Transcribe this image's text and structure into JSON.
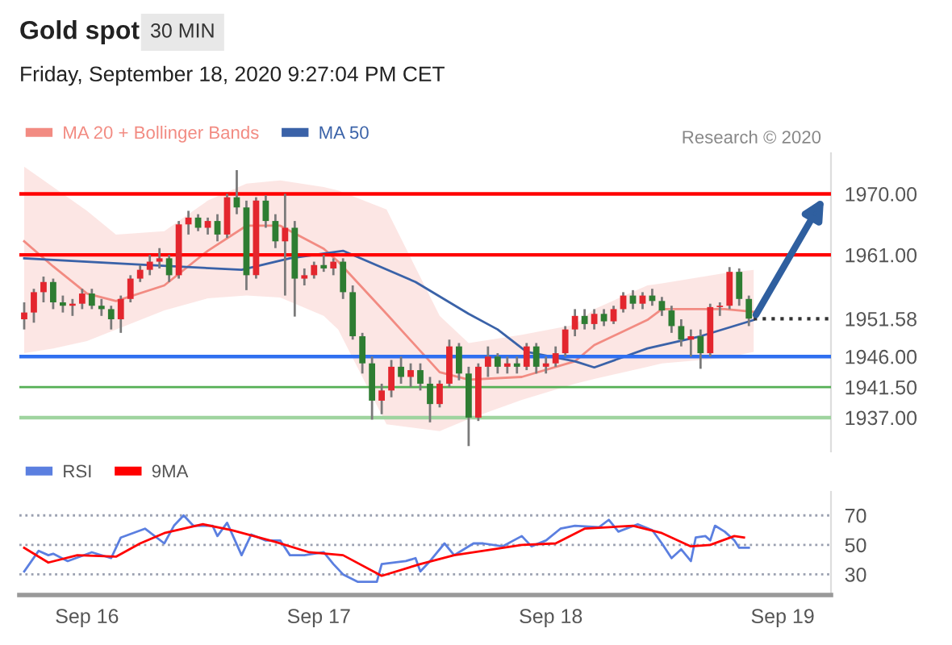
{
  "chart_data": [
    {
      "type": "candlestick",
      "title": "Gold spot",
      "subtitle": "30 MIN",
      "annotations": [
        "Friday, September 18, 2020 9:27:04 PM CET",
        "Research © 2020"
      ],
      "x": [
        "2020-09-15T17:30",
        "2020-09-15T18:30",
        "2020-09-15T19:30",
        "2020-09-15T20:30",
        "2020-09-15T21:30",
        "2020-09-15T22:30",
        "2020-09-15T23:30",
        "2020-09-16T00:30",
        "2020-09-16T01:30",
        "2020-09-16T02:30",
        "2020-09-16T03:30",
        "2020-09-16T04:30",
        "2020-09-16T05:30",
        "2020-09-16T06:30",
        "2020-09-16T07:30",
        "2020-09-16T08:30",
        "2020-09-16T09:30",
        "2020-09-16T10:30",
        "2020-09-16T11:30",
        "2020-09-16T12:30",
        "2020-09-16T13:30",
        "2020-09-16T14:30",
        "2020-09-16T15:30",
        "2020-09-16T16:30",
        "2020-09-16T17:30",
        "2020-09-16T18:30",
        "2020-09-16T19:30",
        "2020-09-16T20:30",
        "2020-09-16T21:30",
        "2020-09-16T22:30",
        "2020-09-16T23:30",
        "2020-09-17T00:30",
        "2020-09-17T01:30",
        "2020-09-17T02:30",
        "2020-09-17T03:30",
        "2020-09-17T04:30",
        "2020-09-17T05:30",
        "2020-09-17T06:30",
        "2020-09-17T07:30",
        "2020-09-17T08:30",
        "2020-09-17T09:30",
        "2020-09-17T10:30",
        "2020-09-17T11:30",
        "2020-09-17T12:30",
        "2020-09-17T13:30",
        "2020-09-17T14:30",
        "2020-09-17T15:30",
        "2020-09-17T16:30",
        "2020-09-17T17:30",
        "2020-09-17T18:30",
        "2020-09-17T19:30",
        "2020-09-17T20:30",
        "2020-09-17T21:30",
        "2020-09-17T22:30",
        "2020-09-17T23:30",
        "2020-09-18T00:30",
        "2020-09-18T01:30",
        "2020-09-18T02:30",
        "2020-09-18T03:30",
        "2020-09-18T04:30",
        "2020-09-18T05:30",
        "2020-09-18T06:30",
        "2020-09-18T07:30",
        "2020-09-18T08:30",
        "2020-09-18T09:30",
        "2020-09-18T10:30",
        "2020-09-18T11:30",
        "2020-09-18T12:30",
        "2020-09-18T13:30",
        "2020-09-18T14:30",
        "2020-09-18T15:30",
        "2020-09-18T16:30",
        "2020-09-18T17:30",
        "2020-09-18T18:30",
        "2020-09-18T19:30",
        "2020-09-18T20:30"
      ],
      "ohlc": [
        [
          1951.5,
          1954,
          1950,
          1952.5
        ],
        [
          1952.5,
          1956,
          1951,
          1955.5
        ],
        [
          1955.5,
          1957.8,
          1954,
          1957
        ],
        [
          1957,
          1957.5,
          1953,
          1954
        ],
        [
          1954,
          1955,
          1952.5,
          1953.5
        ],
        [
          1953.5,
          1954.5,
          1952,
          1953.8
        ],
        [
          1953.8,
          1956,
          1953,
          1955.3
        ],
        [
          1955.3,
          1956,
          1953,
          1953.5
        ],
        [
          1953.5,
          1954.5,
          1952,
          1953
        ],
        [
          1953,
          1953.5,
          1950,
          1951.5
        ],
        [
          1951.5,
          1955,
          1949.5,
          1954.5
        ],
        [
          1954.5,
          1958,
          1954,
          1957.5
        ],
        [
          1957.5,
          1959.5,
          1957,
          1958.8
        ],
        [
          1958.8,
          1961,
          1958,
          1960
        ],
        [
          1960,
          1962,
          1959,
          1960.5
        ],
        [
          1960.5,
          1961,
          1957,
          1958
        ],
        [
          1958,
          1966,
          1957.5,
          1965.5
        ],
        [
          1965.5,
          1967.5,
          1964,
          1966.5
        ],
        [
          1966.5,
          1967,
          1964.5,
          1965
        ],
        [
          1965,
          1966.5,
          1964,
          1966
        ],
        [
          1966,
          1967,
          1963,
          1964
        ],
        [
          1964,
          1970,
          1963.5,
          1969.5
        ],
        [
          1969.5,
          1973.5,
          1967,
          1968
        ],
        [
          1968,
          1969,
          1955.8,
          1958
        ],
        [
          1958,
          1969.5,
          1957.5,
          1969
        ],
        [
          1969,
          1969.8,
          1965,
          1966
        ],
        [
          1966,
          1967,
          1962,
          1963
        ],
        [
          1963,
          1970,
          1955,
          1965
        ],
        [
          1965,
          1966,
          1951.9,
          1957.5
        ],
        [
          1957.5,
          1959,
          1956.5,
          1958
        ],
        [
          1958,
          1960,
          1957.5,
          1959.5
        ],
        [
          1959.5,
          1961,
          1958.5,
          1959
        ],
        [
          1959,
          1960.5,
          1958,
          1960
        ],
        [
          1960,
          1960.5,
          1954.5,
          1955.5
        ],
        [
          1955.5,
          1956.5,
          1948.5,
          1949
        ],
        [
          1949,
          1949.5,
          1943.5,
          1945
        ],
        [
          1945,
          1946,
          1936.7,
          1939.5
        ],
        [
          1939.5,
          1942,
          1937.5,
          1941
        ],
        [
          1941,
          1945.5,
          1940,
          1944.5
        ],
        [
          1944.5,
          1946,
          1942,
          1943
        ],
        [
          1943,
          1945,
          1941.5,
          1944
        ],
        [
          1944,
          1945,
          1941,
          1942
        ],
        [
          1942,
          1943,
          1936.3,
          1939
        ],
        [
          1939,
          1942.5,
          1938.5,
          1942
        ],
        [
          1942,
          1948.5,
          1941.5,
          1947.5
        ],
        [
          1947.5,
          1948,
          1942.5,
          1943.5
        ],
        [
          1943.5,
          1944.5,
          1932.8,
          1937
        ],
        [
          1937,
          1945,
          1936.5,
          1944.5
        ],
        [
          1944.5,
          1947.5,
          1943,
          1946
        ],
        [
          1946,
          1946.5,
          1943.5,
          1944.5
        ],
        [
          1944.5,
          1946,
          1943.5,
          1945
        ],
        [
          1945,
          1946,
          1943.5,
          1944.5
        ],
        [
          1944.5,
          1948,
          1944,
          1947.5
        ],
        [
          1947.5,
          1948,
          1943.5,
          1944.5
        ],
        [
          1944.5,
          1946,
          1943.5,
          1945
        ],
        [
          1945,
          1947.5,
          1944.5,
          1946.5
        ],
        [
          1946.5,
          1950.5,
          1946,
          1950
        ],
        [
          1950,
          1953,
          1949,
          1952
        ],
        [
          1952,
          1953,
          1950,
          1950.8
        ],
        [
          1950.8,
          1953,
          1950,
          1952.3
        ],
        [
          1952.3,
          1953,
          1950.5,
          1951.2
        ],
        [
          1951.2,
          1953.5,
          1950.8,
          1953
        ],
        [
          1953,
          1955.5,
          1952.5,
          1955
        ],
        [
          1955,
          1955.8,
          1953,
          1953.8
        ],
        [
          1953.8,
          1955.5,
          1953,
          1955
        ],
        [
          1955,
          1956,
          1953.5,
          1954.2
        ],
        [
          1954.2,
          1954.8,
          1952,
          1952.8
        ],
        [
          1952.8,
          1953.5,
          1949.5,
          1950.5
        ],
        [
          1950.5,
          1951.5,
          1947.5,
          1948.5
        ],
        [
          1948.5,
          1950,
          1946,
          1949
        ],
        [
          1949,
          1950,
          1944.2,
          1946.5
        ],
        [
          1946.5,
          1953.8,
          1946,
          1953.3
        ],
        [
          1953.3,
          1954,
          1952,
          1953.5
        ],
        [
          1953.5,
          1959.2,
          1953,
          1958.5
        ],
        [
          1958.5,
          1959,
          1953.5,
          1954.5
        ],
        [
          1954.5,
          1955,
          1950.5,
          1951.6
        ]
      ],
      "series": [
        {
          "name": "MA 20 + Bollinger Bands",
          "type": "line",
          "color": "#f28b82",
          "x": [
            "2020-09-15T17:30",
            "2020-09-15T20:30",
            "2020-09-16T00:00",
            "2020-09-16T03:00",
            "2020-09-16T08:00",
            "2020-09-16T12:30",
            "2020-09-16T16:30",
            "2020-09-16T20:00",
            "2020-09-17T00:30",
            "2020-09-17T02:00",
            "2020-09-17T07:00",
            "2020-09-17T12:30",
            "2020-09-17T15:30",
            "2020-09-17T21:00",
            "2020-09-18T02:30",
            "2020-09-18T04:30",
            "2020-09-18T10:00",
            "2020-09-18T11:30",
            "2020-09-18T18:00",
            "2020-09-18T21:00"
          ],
          "values": [
            1963,
            1959.3,
            1955.3,
            1954.2,
            1956.5,
            1961.6,
            1965.3,
            1965.3,
            1961.9,
            1960,
            1952.3,
            1943.7,
            1942.6,
            1943,
            1945.3,
            1947.7,
            1951.4,
            1953,
            1953,
            1952.6
          ],
          "lower": [
            1946.5,
            1947.2,
            1948.3,
            1950,
            1952.8,
            1954.6,
            1955,
            1954.7,
            1952,
            1950,
            1936,
            1935,
            1936.8,
            1939.6,
            1942,
            1942.7,
            1944.5,
            1945,
            1945.8,
            1946.7
          ],
          "upper": [
            1974,
            1971,
            1967.5,
            1964,
            1964.5,
            1969,
            1971.5,
            1972,
            1971,
            1970.5,
            1967.7,
            1952,
            1948,
            1949.2,
            1950.7,
            1953,
            1956.5,
            1956.8,
            1958.3,
            1958.8
          ]
        },
        {
          "name": "MA 50",
          "type": "line",
          "color": "#3a62a8",
          "x": [
            "2020-09-15T17:30",
            "2020-09-16T05:00",
            "2020-09-16T16:00",
            "2020-09-16T21:00",
            "2020-09-17T02:30",
            "2020-09-17T10:00",
            "2020-09-17T15:30",
            "2020-09-17T18:30",
            "2020-09-17T21:30",
            "2020-09-18T02:30",
            "2020-09-18T04:30",
            "2020-09-18T10:00",
            "2020-09-18T15:30",
            "2020-09-18T21:00"
          ],
          "values": [
            1960.5,
            1959.6,
            1958.8,
            1960.5,
            1961.6,
            1957,
            1952.3,
            1950,
            1946.7,
            1945.3,
            1944.4,
            1947.2,
            1949,
            1951.4
          ]
        }
      ],
      "ref_lines": [
        {
          "axis": "y",
          "value": 1970,
          "label": "1970.00",
          "color": "#ff0000"
        },
        {
          "axis": "y",
          "value": 1961,
          "label": "1961.00",
          "color": "#ff0000"
        },
        {
          "axis": "y",
          "value": 1951.58,
          "label": "1951.58",
          "color": "#333333",
          "line_style": "dotted"
        },
        {
          "axis": "y",
          "value": 1946,
          "label": "1946.00",
          "color": "#2f6ff0"
        },
        {
          "axis": "y",
          "value": 1941.5,
          "label": "1941.50",
          "color": "#55b055"
        },
        {
          "axis": "y",
          "value": 1937,
          "label": "1937.00",
          "color": "#9fd49f"
        }
      ],
      "xlim": [
        "2020-09-15T17:00",
        "2020-09-19T05:00"
      ],
      "ylim": [
        1932,
        1976
      ],
      "tick_labels": "y",
      "legend": "top left"
    },
    {
      "type": "line",
      "series": [
        {
          "name": "RSI",
          "color": "#5b7fe0",
          "x": [
            "2020-09-15T17:30",
            "2020-09-15T19:00",
            "2020-09-15T20:00",
            "2020-09-15T20:30",
            "2020-09-15T22:00",
            "2020-09-16T00:30",
            "2020-09-16T02:30",
            "2020-09-16T03:30",
            "2020-09-16T06:00",
            "2020-09-16T08:00",
            "2020-09-16T09:00",
            "2020-09-16T10:00",
            "2020-09-16T11:00",
            "2020-09-16T13:00",
            "2020-09-16T13:30",
            "2020-09-16T14:30",
            "2020-09-16T16:00",
            "2020-09-16T17:00",
            "2020-09-16T18:30",
            "2020-09-16T20:00",
            "2020-09-16T21:00",
            "2020-09-16T22:30",
            "2020-09-17T00:30",
            "2020-09-17T01:30",
            "2020-09-17T02:30",
            "2020-09-17T04:00",
            "2020-09-17T06:00",
            "2020-09-17T06:30",
            "2020-09-17T09:00",
            "2020-09-17T10:00",
            "2020-09-17T10:30",
            "2020-09-17T11:30",
            "2020-09-17T13:00",
            "2020-09-17T14:00",
            "2020-09-17T14:30",
            "2020-09-17T16:00",
            "2020-09-17T17:00",
            "2020-09-17T19:00",
            "2020-09-17T21:00",
            "2020-09-17T22:00",
            "2020-09-17T23:30",
            "2020-09-18T01:00",
            "2020-09-18T02:30",
            "2020-09-18T05:00",
            "2020-09-18T06:00",
            "2020-09-18T07:00",
            "2020-09-18T09:00",
            "2020-09-18T10:30",
            "2020-09-18T11:30",
            "2020-09-18T12:30",
            "2020-09-18T13:30",
            "2020-09-18T14:30",
            "2020-09-18T15:00",
            "2020-09-18T16:00",
            "2020-09-18T16:30",
            "2020-09-18T17:00",
            "2020-09-18T18:00",
            "2020-09-18T19:00",
            "2020-09-18T19:30",
            "2020-09-18T20:30"
          ],
          "values": [
            32,
            46,
            43,
            44,
            39,
            45,
            41,
            55,
            61,
            51,
            63,
            70,
            63,
            63,
            56,
            65,
            43,
            57,
            53,
            53,
            43,
            43,
            45,
            37,
            30,
            25,
            25,
            37,
            39,
            41,
            32,
            39,
            51,
            43,
            45,
            51,
            51,
            49,
            56,
            49,
            53,
            61,
            63,
            62,
            67,
            59,
            64,
            60,
            51,
            41,
            47,
            39,
            55,
            56,
            53,
            63,
            59,
            53,
            48,
            48
          ]
        },
        {
          "name": "9MA",
          "color": "#ff0000",
          "x": [
            "2020-09-15T17:30",
            "2020-09-15T20:00",
            "2020-09-15T23:00",
            "2020-09-16T03:00",
            "2020-09-16T05:30",
            "2020-09-16T08:00",
            "2020-09-16T12:00",
            "2020-09-16T15:00",
            "2020-09-16T19:30",
            "2020-09-16T23:00",
            "2020-09-17T02:30",
            "2020-09-17T06:30",
            "2020-09-17T10:30",
            "2020-09-17T14:00",
            "2020-09-17T18:00",
            "2020-09-17T21:00",
            "2020-09-18T00:30",
            "2020-09-18T03:30",
            "2020-09-18T08:30",
            "2020-09-18T11:30",
            "2020-09-18T14:30",
            "2020-09-18T16:30",
            "2020-09-18T19:00",
            "2020-09-18T20:00"
          ],
          "values": [
            48,
            38,
            43,
            42,
            51,
            58,
            64,
            60,
            52,
            45,
            43,
            29,
            37,
            43,
            47,
            50,
            51,
            61,
            63,
            58,
            49,
            50,
            56,
            55
          ]
        }
      ],
      "xlim": [
        "2020-09-15T17:00",
        "2020-09-19T05:00"
      ],
      "ylim": [
        16,
        86
      ],
      "xticks": [
        {
          "value": "2020-09-16",
          "label": "Sep 16"
        },
        {
          "value": "2020-09-17",
          "label": "Sep 17"
        },
        {
          "value": "2020-09-18",
          "label": "Sep 18"
        },
        {
          "value": "2020-09-19",
          "label": "Sep 19"
        }
      ],
      "yticks": [
        30,
        50,
        70
      ],
      "grid": "y",
      "legend": "top left"
    }
  ]
}
